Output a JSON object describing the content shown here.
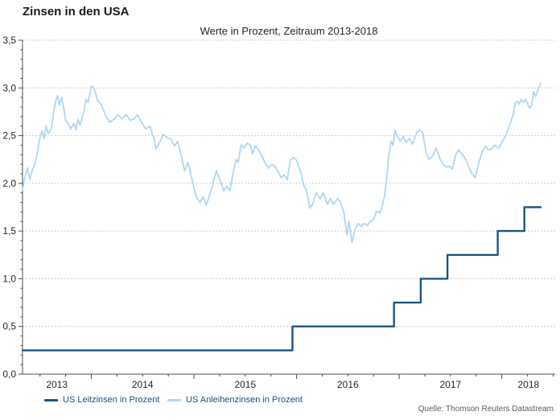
{
  "header": {
    "title": "Zinsen in den USA",
    "subtitle": "Werte in Prozent, Zeitraum 2013-2018"
  },
  "source": "Quelle: Thomson Reuters Datastream",
  "colors": {
    "leitzins_line": "#1a5683",
    "anleihen_line": "#aed7f2",
    "grid": "#cccccc",
    "axis": "#4d4d4d",
    "legend_text": "#1f4e79"
  },
  "legend": [
    {
      "label": "US Leitzinsen in Prozent",
      "color": "#1a5683"
    },
    {
      "label": "US Anleihenzinsen in Prozent",
      "color": "#aed7f2"
    }
  ],
  "chart_data": {
    "type": "line",
    "title": "Zinsen in den USA",
    "subtitle": "Werte in Prozent, Zeitraum 2013-2018",
    "xlabel": "",
    "ylabel": "",
    "xlim": [
      2013.33,
      2018.52
    ],
    "ylim": [
      0,
      3.5
    ],
    "grid": "horizontal-dashed",
    "legend_position": "bottom-left",
    "x_minor_step": 0.25,
    "y_minor_step": 0.1,
    "y_ticks": [
      {
        "value": 0.0,
        "label": "0,0"
      },
      {
        "value": 0.5,
        "label": "0,5"
      },
      {
        "value": 1.0,
        "label": "1,0"
      },
      {
        "value": 1.5,
        "label": "1,5"
      },
      {
        "value": 2.0,
        "label": "2,0"
      },
      {
        "value": 2.5,
        "label": "2,5"
      },
      {
        "value": 3.0,
        "label": "3,0"
      },
      {
        "value": 3.5,
        "label": "3,5"
      }
    ],
    "x_year_labels": [
      "2013",
      "2014",
      "2015",
      "2016",
      "2017",
      "2018"
    ],
    "series": [
      {
        "name": "US Leitzinsen in Prozent",
        "color": "#1a5683",
        "width": 2.4,
        "points": [
          [
            2013.33,
            0.25
          ],
          [
            2015.96,
            0.25
          ],
          [
            2015.96,
            0.5
          ],
          [
            2016.95,
            0.5
          ],
          [
            2016.95,
            0.75
          ],
          [
            2017.21,
            0.75
          ],
          [
            2017.21,
            1.0
          ],
          [
            2017.47,
            1.0
          ],
          [
            2017.47,
            1.25
          ],
          [
            2017.96,
            1.25
          ],
          [
            2017.96,
            1.5
          ],
          [
            2018.22,
            1.5
          ],
          [
            2018.22,
            1.75
          ],
          [
            2018.38,
            1.75
          ]
        ]
      },
      {
        "name": "US Anleihenzinsen in Prozent",
        "color": "#aed7f2",
        "width": 1.8,
        "points": [
          [
            2013.33,
            1.93
          ],
          [
            2013.36,
            2.1
          ],
          [
            2013.38,
            2.16
          ],
          [
            2013.4,
            2.04
          ],
          [
            2013.42,
            2.12
          ],
          [
            2013.45,
            2.2
          ],
          [
            2013.47,
            2.3
          ],
          [
            2013.5,
            2.48
          ],
          [
            2013.52,
            2.55
          ],
          [
            2013.54,
            2.47
          ],
          [
            2013.56,
            2.6
          ],
          [
            2013.58,
            2.52
          ],
          [
            2013.61,
            2.57
          ],
          [
            2013.63,
            2.72
          ],
          [
            2013.65,
            2.85
          ],
          [
            2013.67,
            2.92
          ],
          [
            2013.69,
            2.82
          ],
          [
            2013.71,
            2.9
          ],
          [
            2013.73,
            2.8
          ],
          [
            2013.75,
            2.66
          ],
          [
            2013.78,
            2.62
          ],
          [
            2013.8,
            2.57
          ],
          [
            2013.83,
            2.63
          ],
          [
            2013.85,
            2.56
          ],
          [
            2013.87,
            2.67
          ],
          [
            2013.89,
            2.61
          ],
          [
            2013.92,
            2.72
          ],
          [
            2013.95,
            2.88
          ],
          [
            2013.97,
            2.85
          ],
          [
            2014.0,
            3.02
          ],
          [
            2014.03,
            2.99
          ],
          [
            2014.06,
            2.87
          ],
          [
            2014.1,
            2.82
          ],
          [
            2014.14,
            2.71
          ],
          [
            2014.18,
            2.64
          ],
          [
            2014.22,
            2.67
          ],
          [
            2014.26,
            2.72
          ],
          [
            2014.3,
            2.68
          ],
          [
            2014.34,
            2.72
          ],
          [
            2014.38,
            2.66
          ],
          [
            2014.42,
            2.68
          ],
          [
            2014.45,
            2.72
          ],
          [
            2014.49,
            2.64
          ],
          [
            2014.53,
            2.57
          ],
          [
            2014.57,
            2.6
          ],
          [
            2014.61,
            2.47
          ],
          [
            2014.63,
            2.36
          ],
          [
            2014.67,
            2.44
          ],
          [
            2014.7,
            2.51
          ],
          [
            2014.74,
            2.48
          ],
          [
            2014.78,
            2.46
          ],
          [
            2014.81,
            2.39
          ],
          [
            2014.84,
            2.44
          ],
          [
            2014.88,
            2.27
          ],
          [
            2014.91,
            2.13
          ],
          [
            2014.94,
            2.22
          ],
          [
            2014.97,
            2.1
          ],
          [
            2015.0,
            1.95
          ],
          [
            2015.03,
            1.84
          ],
          [
            2015.06,
            1.8
          ],
          [
            2015.09,
            1.86
          ],
          [
            2015.12,
            1.77
          ],
          [
            2015.16,
            1.9
          ],
          [
            2015.19,
            2.02
          ],
          [
            2015.22,
            2.13
          ],
          [
            2015.26,
            2.02
          ],
          [
            2015.29,
            1.92
          ],
          [
            2015.32,
            1.97
          ],
          [
            2015.35,
            1.92
          ],
          [
            2015.38,
            2.1
          ],
          [
            2015.41,
            2.25
          ],
          [
            2015.43,
            2.22
          ],
          [
            2015.46,
            2.4
          ],
          [
            2015.49,
            2.37
          ],
          [
            2015.52,
            2.42
          ],
          [
            2015.55,
            2.4
          ],
          [
            2015.57,
            2.31
          ],
          [
            2015.6,
            2.39
          ],
          [
            2015.63,
            2.35
          ],
          [
            2015.67,
            2.27
          ],
          [
            2015.7,
            2.2
          ],
          [
            2015.73,
            2.16
          ],
          [
            2015.76,
            2.2
          ],
          [
            2015.79,
            2.18
          ],
          [
            2015.82,
            2.12
          ],
          [
            2015.85,
            2.06
          ],
          [
            2015.88,
            2.09
          ],
          [
            2015.91,
            2.04
          ],
          [
            2015.94,
            2.24
          ],
          [
            2015.97,
            2.27
          ],
          [
            2016.0,
            2.24
          ],
          [
            2016.04,
            2.12
          ],
          [
            2016.07,
            1.98
          ],
          [
            2016.1,
            1.92
          ],
          [
            2016.13,
            1.74
          ],
          [
            2016.16,
            1.79
          ],
          [
            2016.19,
            1.9
          ],
          [
            2016.23,
            1.84
          ],
          [
            2016.26,
            1.9
          ],
          [
            2016.3,
            1.78
          ],
          [
            2016.33,
            1.84
          ],
          [
            2016.36,
            1.78
          ],
          [
            2016.4,
            1.84
          ],
          [
            2016.43,
            1.8
          ],
          [
            2016.46,
            1.7
          ],
          [
            2016.49,
            1.46
          ],
          [
            2016.51,
            1.6
          ],
          [
            2016.54,
            1.38
          ],
          [
            2016.57,
            1.52
          ],
          [
            2016.6,
            1.58
          ],
          [
            2016.63,
            1.55
          ],
          [
            2016.66,
            1.58
          ],
          [
            2016.69,
            1.56
          ],
          [
            2016.72,
            1.6
          ],
          [
            2016.75,
            1.62
          ],
          [
            2016.78,
            1.71
          ],
          [
            2016.81,
            1.69
          ],
          [
            2016.83,
            1.74
          ],
          [
            2016.86,
            1.88
          ],
          [
            2016.88,
            2.08
          ],
          [
            2016.9,
            2.3
          ],
          [
            2016.92,
            2.44
          ],
          [
            2016.94,
            2.4
          ],
          [
            2016.96,
            2.56
          ],
          [
            2016.98,
            2.5
          ],
          [
            2017.01,
            2.44
          ],
          [
            2017.04,
            2.49
          ],
          [
            2017.07,
            2.43
          ],
          [
            2017.1,
            2.47
          ],
          [
            2017.13,
            2.41
          ],
          [
            2017.17,
            2.53
          ],
          [
            2017.2,
            2.56
          ],
          [
            2017.23,
            2.53
          ],
          [
            2017.26,
            2.33
          ],
          [
            2017.29,
            2.25
          ],
          [
            2017.33,
            2.29
          ],
          [
            2017.36,
            2.37
          ],
          [
            2017.4,
            2.25
          ],
          [
            2017.43,
            2.2
          ],
          [
            2017.46,
            2.17
          ],
          [
            2017.49,
            2.18
          ],
          [
            2017.52,
            2.15
          ],
          [
            2017.55,
            2.3
          ],
          [
            2017.58,
            2.35
          ],
          [
            2017.61,
            2.31
          ],
          [
            2017.65,
            2.25
          ],
          [
            2017.68,
            2.17
          ],
          [
            2017.71,
            2.1
          ],
          [
            2017.74,
            2.06
          ],
          [
            2017.78,
            2.23
          ],
          [
            2017.81,
            2.33
          ],
          [
            2017.84,
            2.39
          ],
          [
            2017.87,
            2.35
          ],
          [
            2017.9,
            2.36
          ],
          [
            2017.93,
            2.4
          ],
          [
            2017.97,
            2.37
          ],
          [
            2018.0,
            2.43
          ],
          [
            2018.03,
            2.48
          ],
          [
            2018.06,
            2.56
          ],
          [
            2018.08,
            2.62
          ],
          [
            2018.11,
            2.72
          ],
          [
            2018.13,
            2.84
          ],
          [
            2018.15,
            2.86
          ],
          [
            2018.17,
            2.83
          ],
          [
            2018.19,
            2.88
          ],
          [
            2018.21,
            2.85
          ],
          [
            2018.23,
            2.88
          ],
          [
            2018.25,
            2.84
          ],
          [
            2018.27,
            2.79
          ],
          [
            2018.29,
            2.82
          ],
          [
            2018.31,
            2.96
          ],
          [
            2018.33,
            2.91
          ],
          [
            2018.35,
            2.97
          ],
          [
            2018.38,
            3.05
          ]
        ]
      }
    ]
  }
}
